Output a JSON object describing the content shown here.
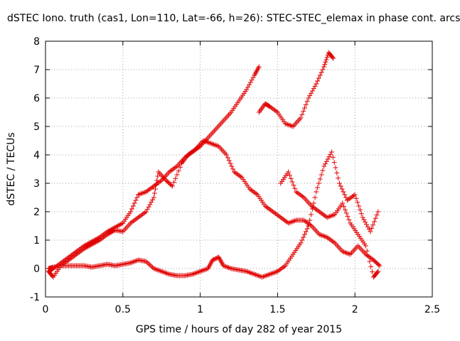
{
  "chart_data": {
    "type": "scatter",
    "title": "dSTEC Iono. truth (cas1, Lon=110, Lat=-66, h=26): STEC-STEC_elemax in phase cont. arcs",
    "xlabel": "GPS time / hours of day 282 of year 2015",
    "ylabel": "dSTEC  / TECUs",
    "xlim": [
      0,
      2.5
    ],
    "ylim": [
      -1,
      8
    ],
    "xticks": [
      "0",
      "0.5",
      "1",
      "1.5",
      "2",
      "2.5"
    ],
    "yticks": [
      "-1",
      "0",
      "1",
      "2",
      "3",
      "4",
      "5",
      "6",
      "7",
      "8"
    ],
    "grid": true,
    "marker": "+",
    "marker_color": "#e00000",
    "series": [
      {
        "values": [
          [
            0.02,
            -0.1
          ],
          [
            0.05,
            0.0
          ],
          [
            0.1,
            0.2
          ],
          [
            0.15,
            0.4
          ],
          [
            0.2,
            0.6
          ],
          [
            0.25,
            0.8
          ],
          [
            0.3,
            0.95
          ],
          [
            0.35,
            1.1
          ],
          [
            0.4,
            1.3
          ],
          [
            0.45,
            1.45
          ],
          [
            0.5,
            1.6
          ],
          [
            0.55,
            2.0
          ],
          [
            0.6,
            2.6
          ],
          [
            0.65,
            2.7
          ],
          [
            0.7,
            2.9
          ],
          [
            0.75,
            3.1
          ],
          [
            0.8,
            3.4
          ],
          [
            0.85,
            3.6
          ],
          [
            0.9,
            3.9
          ],
          [
            0.95,
            4.1
          ],
          [
            1.0,
            4.3
          ],
          [
            1.05,
            4.6
          ],
          [
            1.1,
            4.9
          ],
          [
            1.15,
            5.2
          ],
          [
            1.2,
            5.5
          ],
          [
            1.25,
            5.9
          ],
          [
            1.3,
            6.3
          ],
          [
            1.35,
            6.8
          ],
          [
            1.38,
            7.1
          ]
        ]
      },
      {
        "values": [
          [
            1.38,
            5.5
          ],
          [
            1.42,
            5.8
          ],
          [
            1.45,
            5.7
          ],
          [
            1.5,
            5.5
          ],
          [
            1.55,
            5.1
          ],
          [
            1.6,
            5.0
          ],
          [
            1.65,
            5.3
          ],
          [
            1.7,
            6.0
          ],
          [
            1.75,
            6.5
          ],
          [
            1.8,
            7.1
          ],
          [
            1.83,
            7.6
          ],
          [
            1.86,
            7.4
          ]
        ]
      },
      {
        "values": [
          [
            0.02,
            -0.1
          ],
          [
            0.05,
            -0.3
          ],
          [
            0.1,
            0.1
          ],
          [
            0.15,
            0.3
          ],
          [
            0.2,
            0.5
          ],
          [
            0.25,
            0.7
          ],
          [
            0.3,
            0.85
          ],
          [
            0.35,
            1.0
          ],
          [
            0.4,
            1.2
          ],
          [
            0.45,
            1.35
          ],
          [
            0.5,
            1.3
          ],
          [
            0.55,
            1.6
          ],
          [
            0.6,
            1.8
          ],
          [
            0.65,
            2.0
          ],
          [
            0.7,
            2.5
          ],
          [
            0.73,
            3.4
          ],
          [
            0.78,
            3.1
          ],
          [
            0.82,
            2.9
          ],
          [
            0.88,
            3.7
          ],
          [
            0.92,
            4.0
          ],
          [
            0.97,
            4.2
          ],
          [
            1.02,
            4.5
          ],
          [
            1.07,
            4.4
          ],
          [
            1.12,
            4.3
          ],
          [
            1.17,
            4.0
          ],
          [
            1.22,
            3.4
          ],
          [
            1.27,
            3.2
          ],
          [
            1.32,
            2.8
          ],
          [
            1.37,
            2.6
          ],
          [
            1.42,
            2.2
          ],
          [
            1.47,
            2.0
          ],
          [
            1.52,
            1.8
          ],
          [
            1.57,
            1.6
          ],
          [
            1.62,
            1.7
          ],
          [
            1.67,
            1.7
          ],
          [
            1.72,
            1.5
          ],
          [
            1.77,
            1.2
          ],
          [
            1.82,
            1.1
          ],
          [
            1.87,
            0.9
          ],
          [
            1.92,
            0.6
          ],
          [
            1.97,
            0.5
          ],
          [
            2.02,
            0.8
          ],
          [
            2.07,
            0.5
          ],
          [
            2.12,
            0.3
          ],
          [
            2.16,
            0.1
          ]
        ]
      },
      {
        "values": [
          [
            0.02,
            0.0
          ],
          [
            0.05,
            0.05
          ],
          [
            0.1,
            0.1
          ],
          [
            0.15,
            0.1
          ],
          [
            0.2,
            0.1
          ],
          [
            0.25,
            0.1
          ],
          [
            0.3,
            0.05
          ],
          [
            0.35,
            0.1
          ],
          [
            0.4,
            0.15
          ],
          [
            0.45,
            0.1
          ],
          [
            0.5,
            0.15
          ],
          [
            0.55,
            0.2
          ],
          [
            0.6,
            0.3
          ],
          [
            0.65,
            0.25
          ],
          [
            0.7,
            0.0
          ],
          [
            0.75,
            -0.1
          ],
          [
            0.8,
            -0.2
          ],
          [
            0.85,
            -0.25
          ],
          [
            0.9,
            -0.25
          ],
          [
            0.95,
            -0.2
          ],
          [
            1.0,
            -0.1
          ],
          [
            1.05,
            0.0
          ],
          [
            1.08,
            0.3
          ],
          [
            1.12,
            0.4
          ],
          [
            1.15,
            0.1
          ],
          [
            1.2,
            0.0
          ],
          [
            1.25,
            -0.05
          ],
          [
            1.3,
            -0.1
          ],
          [
            1.35,
            -0.2
          ],
          [
            1.4,
            -0.3
          ],
          [
            1.45,
            -0.2
          ],
          [
            1.5,
            -0.1
          ],
          [
            1.55,
            0.1
          ],
          [
            1.6,
            0.5
          ],
          [
            1.65,
            0.9
          ],
          [
            1.7,
            1.5
          ],
          [
            1.75,
            2.7
          ],
          [
            1.8,
            3.6
          ],
          [
            1.85,
            4.1
          ],
          [
            1.9,
            3.0
          ],
          [
            1.95,
            2.4
          ],
          [
            2.0,
            2.6
          ],
          [
            2.05,
            1.8
          ],
          [
            2.1,
            1.3
          ],
          [
            2.15,
            2.0
          ]
        ]
      },
      {
        "values": [
          [
            1.52,
            3.0
          ],
          [
            1.57,
            3.4
          ],
          [
            1.62,
            2.7
          ],
          [
            1.67,
            2.5
          ],
          [
            1.72,
            2.2
          ],
          [
            1.77,
            2.0
          ],
          [
            1.82,
            1.8
          ],
          [
            1.87,
            1.9
          ],
          [
            1.92,
            2.3
          ],
          [
            1.97,
            1.6
          ],
          [
            2.02,
            1.2
          ],
          [
            2.07,
            0.8
          ],
          [
            2.12,
            -0.3
          ],
          [
            2.15,
            -0.1
          ]
        ]
      }
    ]
  }
}
